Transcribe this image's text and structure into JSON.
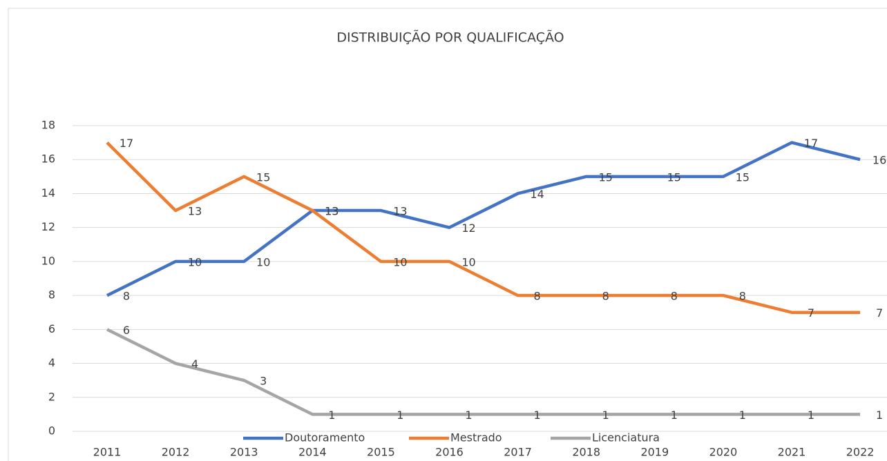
{
  "chart_data": {
    "type": "line",
    "title": "DISTRIBUIÇÃO POR QUALIFICAÇÃO",
    "categories": [
      "2011",
      "2012",
      "2013",
      "2014",
      "2015",
      "2016",
      "2017",
      "2018",
      "2019",
      "2020",
      "2021",
      "2022"
    ],
    "series": [
      {
        "name": "Doutoramento",
        "color": "#4472c4",
        "values": [
          8,
          10,
          10,
          13,
          13,
          12,
          14,
          15,
          15,
          15,
          17,
          16
        ]
      },
      {
        "name": "Mestrado",
        "color": "#ed7d31",
        "values": [
          17,
          13,
          15,
          13,
          10,
          10,
          8,
          8,
          8,
          8,
          7,
          7
        ]
      },
      {
        "name": "Licenciatura",
        "color": "#a5a5a5",
        "values": [
          6,
          4,
          3,
          1,
          1,
          1,
          1,
          1,
          1,
          1,
          1,
          1
        ]
      }
    ],
    "ylim": [
      0,
      18
    ],
    "yticks": [
      0,
      2,
      4,
      6,
      8,
      10,
      12,
      14,
      16,
      18
    ],
    "grid": true,
    "legend": "bottom"
  }
}
